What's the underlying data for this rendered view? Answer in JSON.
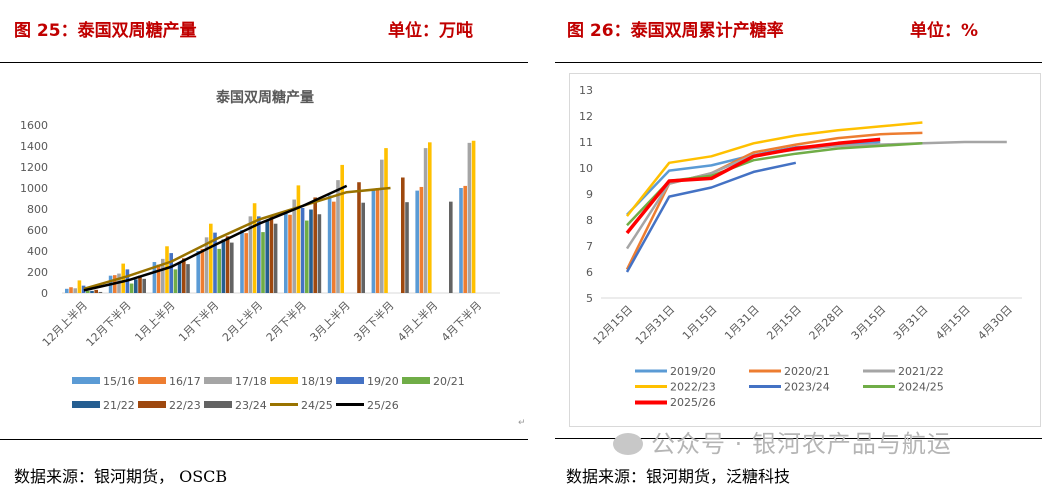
{
  "left": {
    "figure_title": "图 25：泰国双周糖产量",
    "unit": "单位：万吨",
    "source": "数据来源：银河期货， OSCB"
  },
  "right": {
    "figure_title": "图 26：泰国双周累计产糖率",
    "unit": "单位：%",
    "source": "数据来源：银河期货，泛糖科技"
  },
  "watermark": "公众号 · 银河农产品与航运",
  "chart_data": [
    {
      "type": "bar",
      "title": "泰国双周糖产量",
      "categories": [
        "12月上半月",
        "12月下半月",
        "1月上半月",
        "1月下半月",
        "2月上半月",
        "2月下半月",
        "3月上半月",
        "3月下半月",
        "4月上半月",
        "4月下半月"
      ],
      "ylim": [
        0,
        1600
      ],
      "yticks": [
        "0",
        "200",
        "400",
        "600",
        "800",
        "1000",
        "1200",
        "1400",
        "1600"
      ],
      "legend_position": "bottom",
      "series": [
        {
          "name": "15/16",
          "color": "#5b9bd5",
          "values": [
            40,
            165,
            295,
            400,
            600,
            770,
            930,
            980,
            975,
            1000
          ]
        },
        {
          "name": "16/17",
          "color": "#ed7d31",
          "values": [
            55,
            170,
            270,
            420,
            570,
            745,
            870,
            1000,
            1010,
            1020
          ]
        },
        {
          "name": "17/18",
          "color": "#a5a5a5",
          "values": [
            45,
            185,
            325,
            530,
            730,
            890,
            1075,
            1270,
            1380,
            1430
          ]
        },
        {
          "name": "18/19",
          "color": "#ffc000",
          "values": [
            120,
            280,
            445,
            660,
            855,
            1025,
            1220,
            1380,
            1435,
            1450
          ]
        },
        {
          "name": "19/20",
          "color": "#4472c4",
          "values": [
            70,
            225,
            380,
            575,
            730,
            810,
            null,
            null,
            null,
            null
          ]
        },
        {
          "name": "20/21",
          "color": "#70ad47",
          "values": [
            20,
            90,
            225,
            420,
            580,
            690,
            null,
            null,
            null,
            null
          ]
        },
        {
          "name": "21/22",
          "color": "#255e91",
          "values": [
            20,
            130,
            290,
            510,
            690,
            795,
            null,
            null,
            null,
            null
          ]
        },
        {
          "name": "22/23",
          "color": "#9e480e",
          "values": [
            30,
            165,
            330,
            540,
            730,
            910,
            1055,
            1100,
            null,
            null
          ]
        },
        {
          "name": "23/24",
          "color": "#636363",
          "values": [
            10,
            135,
            275,
            480,
            660,
            750,
            860,
            865,
            870,
            null
          ]
        },
        {
          "name": "24/25",
          "color": "#997300",
          "kind": "line",
          "values": [
            40,
            160,
            300,
            510,
            700,
            830,
            960,
            1000,
            null,
            null
          ]
        },
        {
          "name": "25/26",
          "color": "#000000",
          "kind": "line",
          "values": [
            25,
            120,
            250,
            460,
            660,
            830,
            1020,
            null,
            null,
            null
          ]
        }
      ]
    },
    {
      "type": "line",
      "title": "",
      "categories": [
        "12月15日",
        "12月31日",
        "1月15日",
        "1月31日",
        "2月15日",
        "2月28日",
        "3月15日",
        "3月31日",
        "4月15日",
        "4月30日"
      ],
      "ylim": [
        5,
        13
      ],
      "yticks": [
        "5",
        "6",
        "7",
        "8",
        "9",
        "10",
        "11",
        "12",
        "13"
      ],
      "legend_position": "bottom",
      "series": [
        {
          "name": "2019/20",
          "color": "#5b9bd5",
          "values": [
            8.2,
            9.9,
            10.1,
            10.5,
            10.8,
            10.9,
            11.0,
            null,
            null,
            null
          ]
        },
        {
          "name": "2020/21",
          "color": "#ed7d31",
          "values": [
            6.1,
            9.4,
            9.8,
            10.6,
            10.9,
            11.15,
            11.3,
            11.35,
            null,
            null
          ]
        },
        {
          "name": "2021/22",
          "color": "#a5a5a5",
          "values": [
            6.9,
            9.4,
            9.8,
            10.5,
            10.7,
            10.85,
            10.9,
            10.95,
            11.0,
            11.0
          ]
        },
        {
          "name": "2022/23",
          "color": "#ffc000",
          "values": [
            8.15,
            10.2,
            10.45,
            10.95,
            11.25,
            11.45,
            11.6,
            11.75,
            null,
            null
          ]
        },
        {
          "name": "2023/24",
          "color": "#4472c4",
          "values": [
            6.0,
            8.9,
            9.25,
            9.85,
            10.2,
            null,
            null,
            null,
            null,
            null
          ]
        },
        {
          "name": "2024/25",
          "color": "#70ad47",
          "values": [
            7.8,
            9.5,
            9.7,
            10.3,
            10.55,
            10.75,
            10.85,
            10.95,
            null,
            null
          ]
        },
        {
          "name": "2025/26",
          "color": "#ff0000",
          "values": [
            7.5,
            9.5,
            9.6,
            10.45,
            10.75,
            10.95,
            11.1,
            null,
            null,
            null
          ]
        }
      ]
    }
  ]
}
